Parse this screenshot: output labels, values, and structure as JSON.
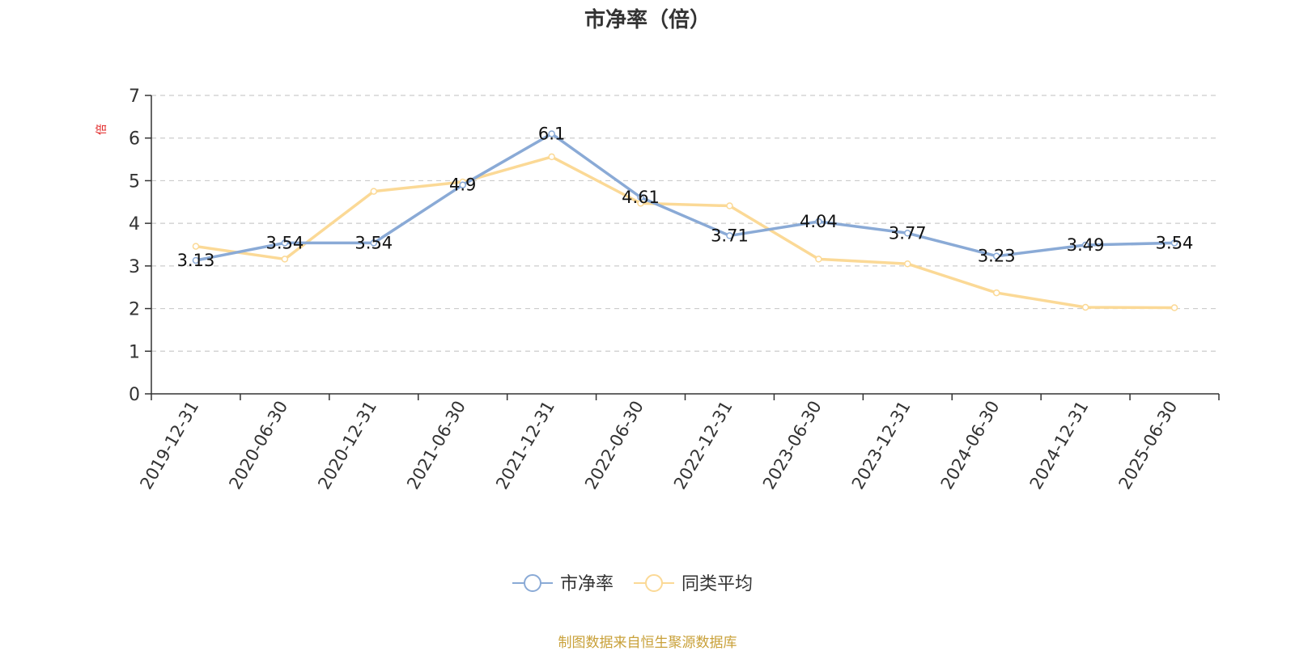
{
  "chart_data": {
    "type": "line",
    "title": "市净率（倍）",
    "ylabel": "倍",
    "ylim": [
      0,
      7
    ],
    "yticks": [
      0,
      1,
      2,
      3,
      4,
      5,
      6,
      7
    ],
    "grid": true,
    "legend_position": "bottom-center",
    "categories": [
      "2019-12-31",
      "2020-06-30",
      "2020-12-31",
      "2021-06-30",
      "2021-12-31",
      "2022-06-30",
      "2022-12-31",
      "2023-06-30",
      "2023-12-31",
      "2024-06-30",
      "2024-12-31",
      "2025-06-30"
    ],
    "series": [
      {
        "name": "市净率",
        "color": "#8aaad6",
        "values": [
          3.13,
          3.54,
          3.54,
          4.9,
          6.1,
          4.61,
          3.71,
          4.04,
          3.77,
          3.23,
          3.49,
          3.54
        ],
        "labels": [
          "3.13",
          "3.54",
          "3.54",
          "4.9",
          "6.1",
          "4.61",
          "3.71",
          "4.04",
          "3.77",
          "3.23",
          "3.49",
          "3.54"
        ]
      },
      {
        "name": "同类平均",
        "color": "#fbd996",
        "values": [
          3.46,
          3.16,
          4.75,
          4.97,
          5.56,
          4.47,
          4.41,
          3.16,
          3.05,
          2.37,
          2.03,
          2.02
        ]
      }
    ]
  },
  "footer": "制图数据来自恒生聚源数据库",
  "colors": {
    "axis": "#333333",
    "grid": "#cccccc",
    "ylabel": "#e02020",
    "footer": "#c9a13a"
  }
}
